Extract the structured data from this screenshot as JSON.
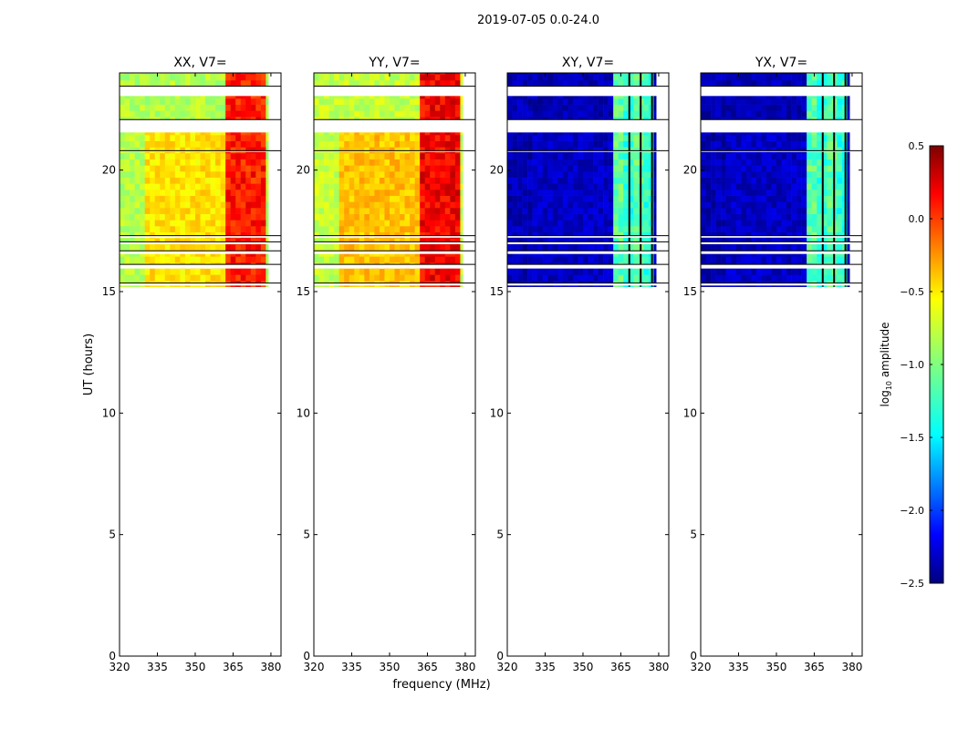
{
  "suptitle": "2019-07-05 0.0-24.0",
  "chart_data": {
    "type": "heatmap",
    "ylabel": "UT (hours)",
    "xlabel": "frequency (MHz)",
    "xlim": [
      320,
      384
    ],
    "ylim": [
      0,
      24
    ],
    "xticks": [
      320,
      335,
      350,
      365,
      380
    ],
    "yticks": [
      0,
      5,
      10,
      15,
      20
    ],
    "data_time_range": [
      15.2,
      24.0
    ],
    "hot_freq_range": [
      361,
      378
    ],
    "data_freq_max": 379,
    "colorbar": {
      "label": "log10 amplitude",
      "label_prefix": "log",
      "label_sub": "10",
      "label_suffix": " amplitude",
      "range": [
        -2.5,
        0.5
      ],
      "ticks": [
        0.5,
        0.0,
        -0.5,
        -1.0,
        -1.5,
        -2.0,
        -2.5
      ],
      "tick_labels": [
        "0.5",
        "0.0",
        "−0.5",
        "−1.0",
        "−1.5",
        "−2.0",
        "−2.5"
      ],
      "colormap": "jet"
    },
    "flagged_bands_hours": [
      [
        15.25,
        15.35
      ],
      [
        15.95,
        16.12
      ],
      [
        16.55,
        16.68
      ],
      [
        16.95,
        17.05
      ],
      [
        17.22,
        17.3
      ],
      [
        21.55,
        22.08
      ],
      [
        20.75,
        20.8
      ],
      [
        23.05,
        23.45
      ]
    ],
    "panels": [
      {
        "title": "XX, V7=",
        "polarization": "XX",
        "base_log_amp": -0.85,
        "hot_log_amp": 0.05,
        "center_log_amp": -0.55
      },
      {
        "title": "YY, V7=",
        "polarization": "YY",
        "base_log_amp": -0.8,
        "hot_log_amp": 0.15,
        "center_log_amp": -0.45
      },
      {
        "title": "XY, V7=",
        "polarization": "XY",
        "base_log_amp": -2.35,
        "hot_log_amp": -1.1,
        "center_log_amp": -2.3
      },
      {
        "title": "YX, V7=",
        "polarization": "YX",
        "base_log_amp": -2.35,
        "hot_log_amp": -1.1,
        "center_log_amp": -2.3
      }
    ]
  }
}
